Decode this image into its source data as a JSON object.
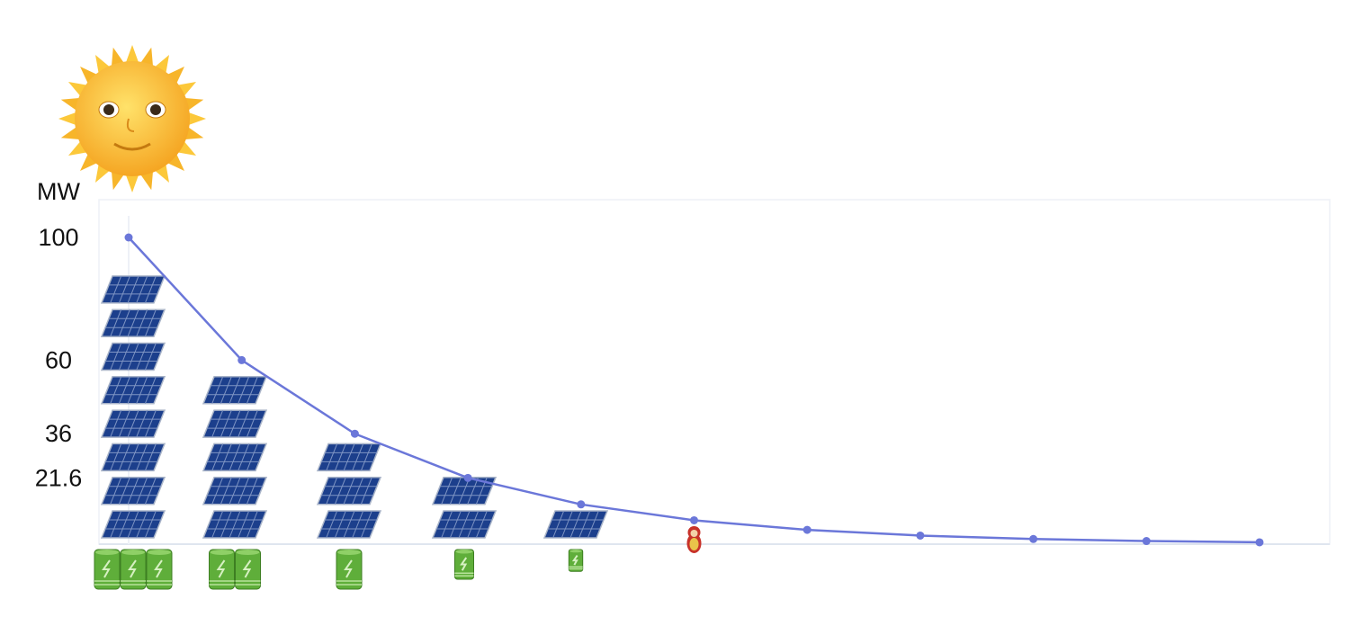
{
  "chart_data": {
    "type": "line",
    "title": "",
    "ylabel": "MW",
    "xlabel": "",
    "ylim": [
      0,
      112
    ],
    "grid": false,
    "ytick_labels": [
      "100",
      "60",
      "36",
      "21.6"
    ],
    "ytick_values": [
      100,
      60,
      36,
      21.6
    ],
    "x": [
      1,
      2,
      3,
      4,
      5,
      6,
      7,
      8,
      9,
      10,
      11
    ],
    "series": [
      {
        "values": [
          100,
          60,
          36,
          21.6,
          12.96,
          7.78,
          4.67,
          2.8,
          1.68,
          1.01,
          0.6
        ],
        "color": "#6b77d9"
      }
    ],
    "pictograms": {
      "solar_panels_per_point": [
        8,
        5,
        3,
        2,
        1
      ],
      "batteries_per_point": [
        3,
        2,
        1,
        1,
        1
      ],
      "battery_scale": [
        1,
        1,
        1,
        0.75,
        0.55
      ],
      "doll_at_point": 6,
      "icons": [
        "sun-with-face-icon",
        "solar-panel-icon",
        "battery-icon",
        "nesting-doll-icon"
      ]
    }
  }
}
